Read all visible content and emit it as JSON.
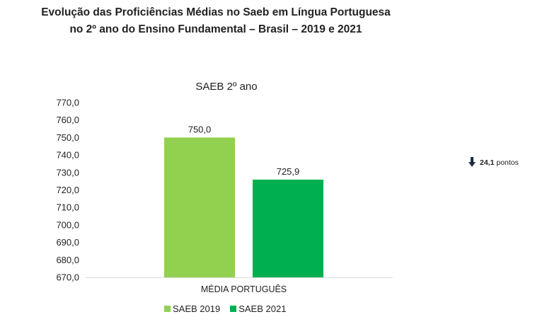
{
  "header": {
    "title_line1": "Evolução das Proficiências Médias no Saeb em Língua Portuguesa",
    "title_line2": "no 2º ano do Ensino Fundamental – Brasil – 2019 e 2021"
  },
  "chart_data": {
    "type": "bar",
    "title": "SAEB 2º ano",
    "categories": [
      "MÉDIA PORTUGUÊS"
    ],
    "series": [
      {
        "name": "SAEB 2019",
        "values": [
          750.0
        ],
        "label": "750,0",
        "color": "#92d050"
      },
      {
        "name": "SAEB 2021",
        "values": [
          725.9
        ],
        "label": "725,9",
        "color": "#00b050"
      }
    ],
    "ylim": [
      670,
      770
    ],
    "y_ticks": [
      "670,0",
      "680,0",
      "690,0",
      "700,0",
      "710,0",
      "720,0",
      "730,0",
      "740,0",
      "750,0",
      "760,0",
      "770,0"
    ],
    "grid": false,
    "legend_position": "bottom"
  },
  "annotation": {
    "icon": "arrow-down-icon",
    "value": "24,1",
    "unit": "pontos"
  }
}
